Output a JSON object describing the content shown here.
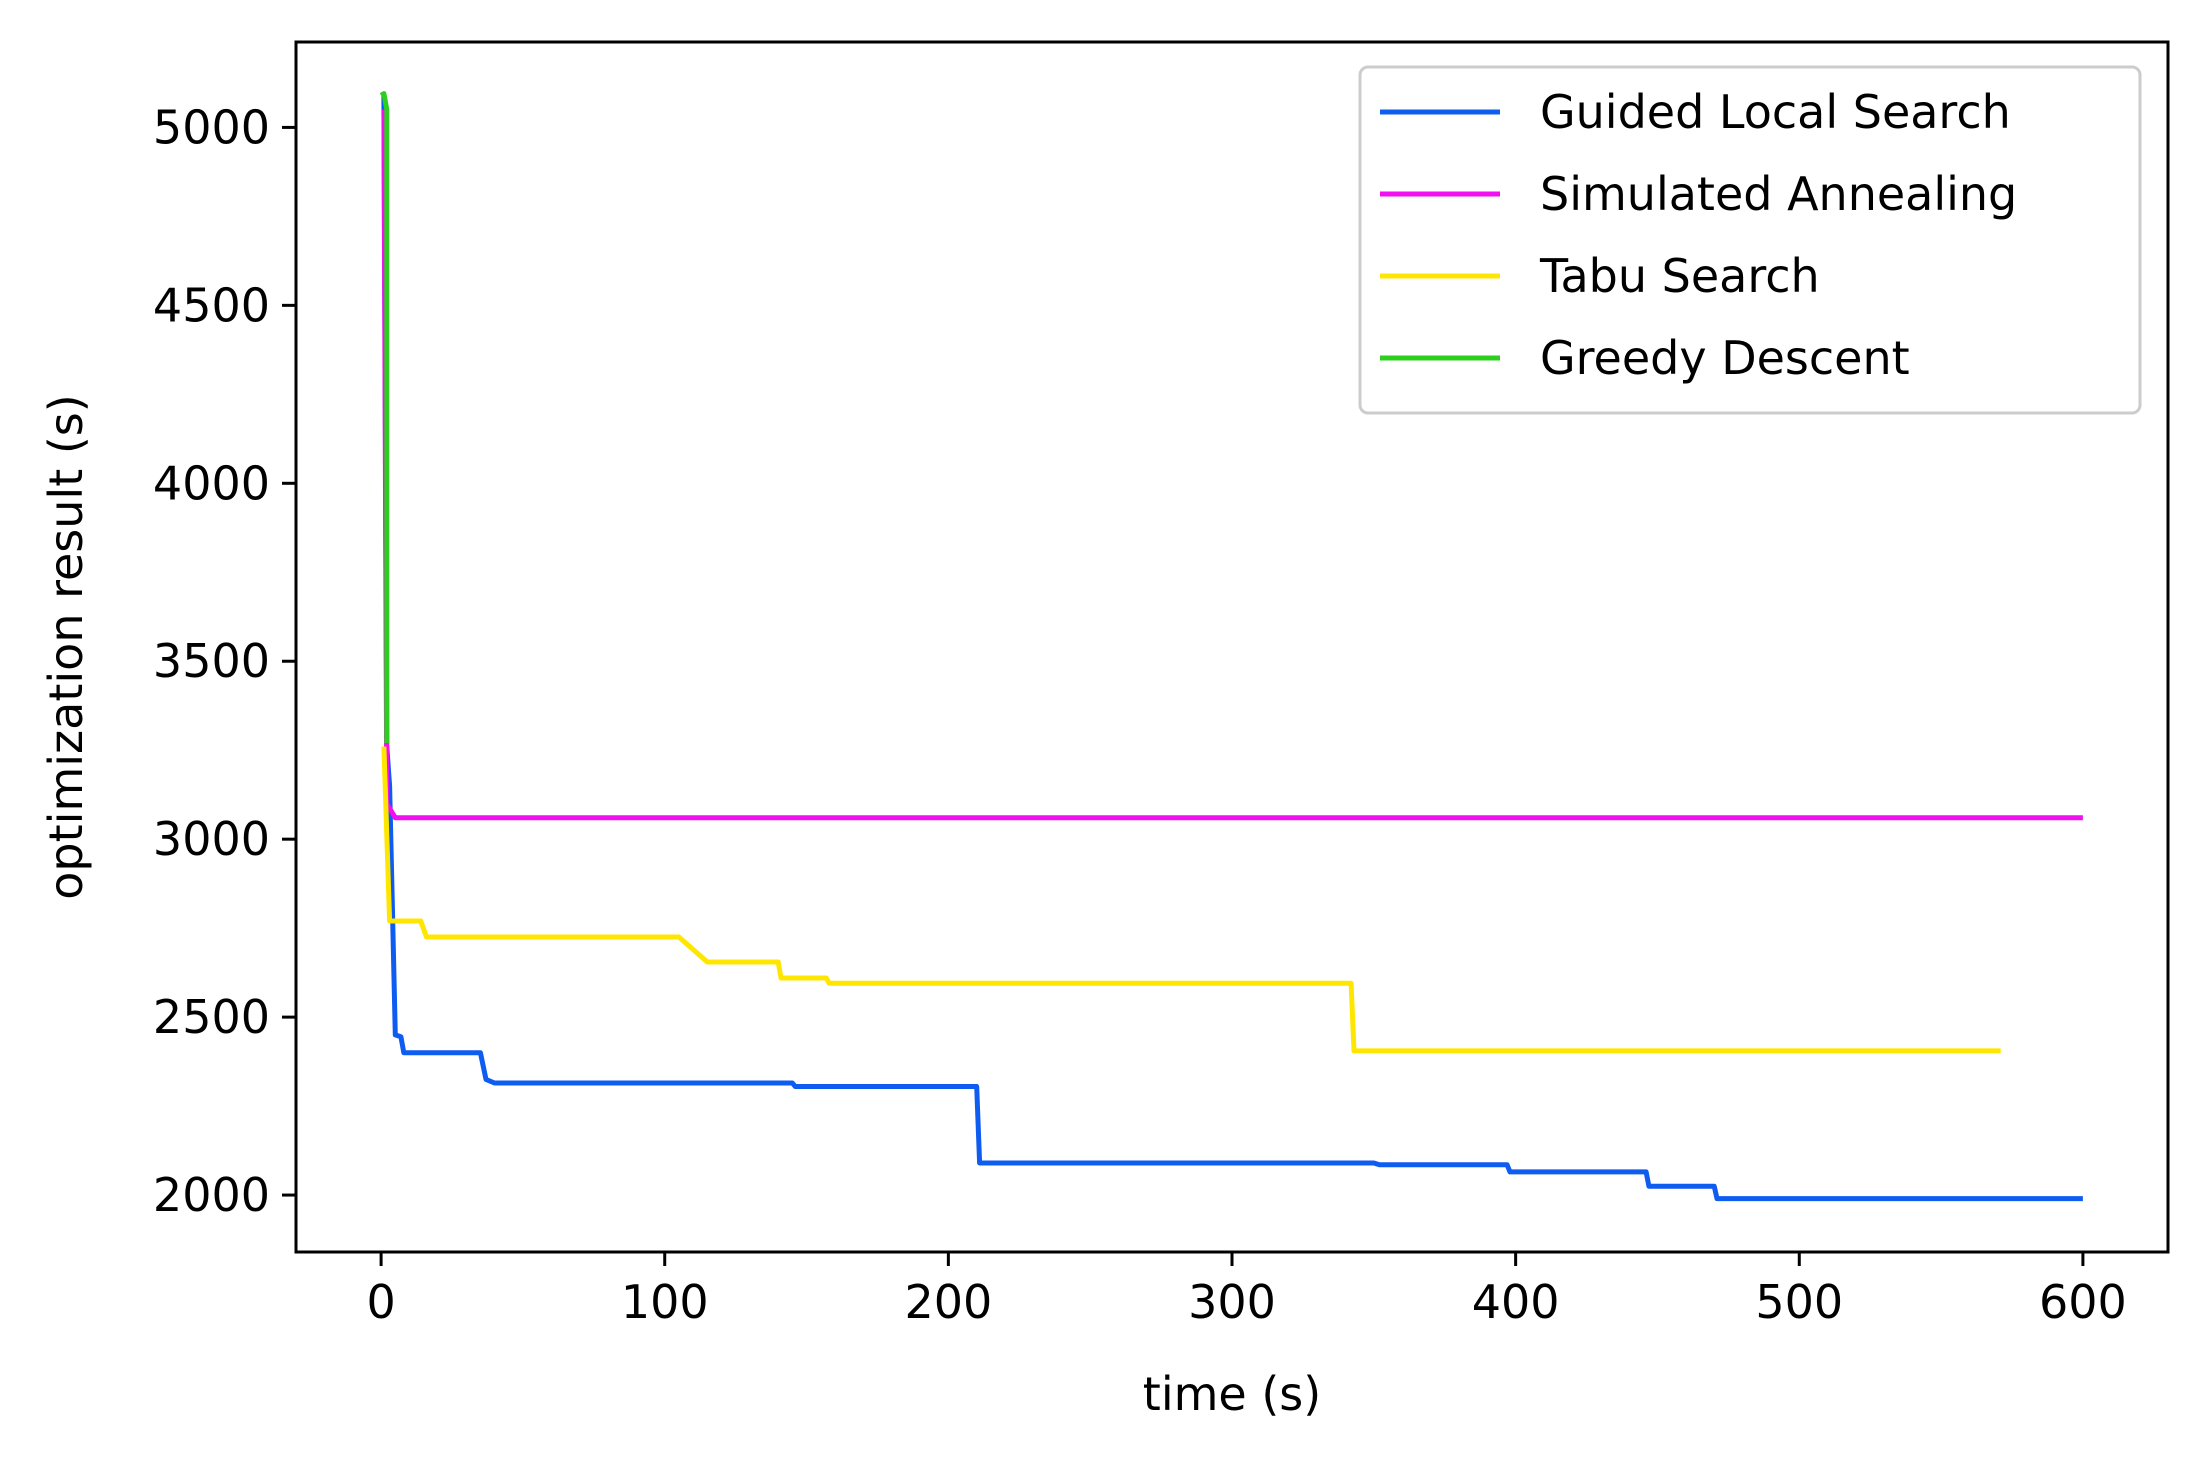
{
  "chart_data": {
    "type": "line",
    "title": "",
    "xlabel": "time (s)",
    "ylabel": "optimization result (s)",
    "xlim": [
      -30,
      630
    ],
    "ylim": [
      1840,
      5240
    ],
    "xticks": [
      0,
      100,
      200,
      300,
      400,
      500,
      600
    ],
    "yticks": [
      2000,
      2500,
      3000,
      3500,
      4000,
      4500,
      5000
    ],
    "grid": false,
    "legend_position": "top-right",
    "series": [
      {
        "name": "Guided Local Search",
        "color": "#0f5cf0",
        "step": true,
        "points": [
          [
            1,
            5090
          ],
          [
            2,
            3260
          ],
          [
            3,
            3150
          ],
          [
            5,
            2450
          ],
          [
            7,
            2445
          ],
          [
            8,
            2400
          ],
          [
            35,
            2400
          ],
          [
            37,
            2325
          ],
          [
            40,
            2315
          ],
          [
            145,
            2315
          ],
          [
            146,
            2305
          ],
          [
            210,
            2305
          ],
          [
            211,
            2090
          ],
          [
            350,
            2090
          ],
          [
            352,
            2085
          ],
          [
            397,
            2085
          ],
          [
            398,
            2065
          ],
          [
            446,
            2065
          ],
          [
            447,
            2025
          ],
          [
            470,
            2025
          ],
          [
            471,
            1990
          ],
          [
            600,
            1990
          ]
        ]
      },
      {
        "name": "Simulated Annealing",
        "color": "#f010f0",
        "step": true,
        "points": [
          [
            1,
            5050
          ],
          [
            2,
            3100
          ],
          [
            5,
            3060
          ],
          [
            600,
            3060
          ]
        ]
      },
      {
        "name": "Tabu Search",
        "color": "#ffe600",
        "step": true,
        "points": [
          [
            1,
            3260
          ],
          [
            3,
            2770
          ],
          [
            14,
            2770
          ],
          [
            16,
            2725
          ],
          [
            105,
            2725
          ],
          [
            115,
            2655
          ],
          [
            140,
            2655
          ],
          [
            141,
            2610
          ],
          [
            157,
            2610
          ],
          [
            158,
            2595
          ],
          [
            342,
            2595
          ],
          [
            343,
            2405
          ],
          [
            571,
            2405
          ]
        ]
      },
      {
        "name": "Greedy Descent",
        "color": "#2ccf1e",
        "step": false,
        "points": [
          [
            0,
            5090
          ],
          [
            1,
            5095
          ],
          [
            2,
            5050
          ],
          [
            2,
            3270
          ]
        ]
      }
    ]
  }
}
